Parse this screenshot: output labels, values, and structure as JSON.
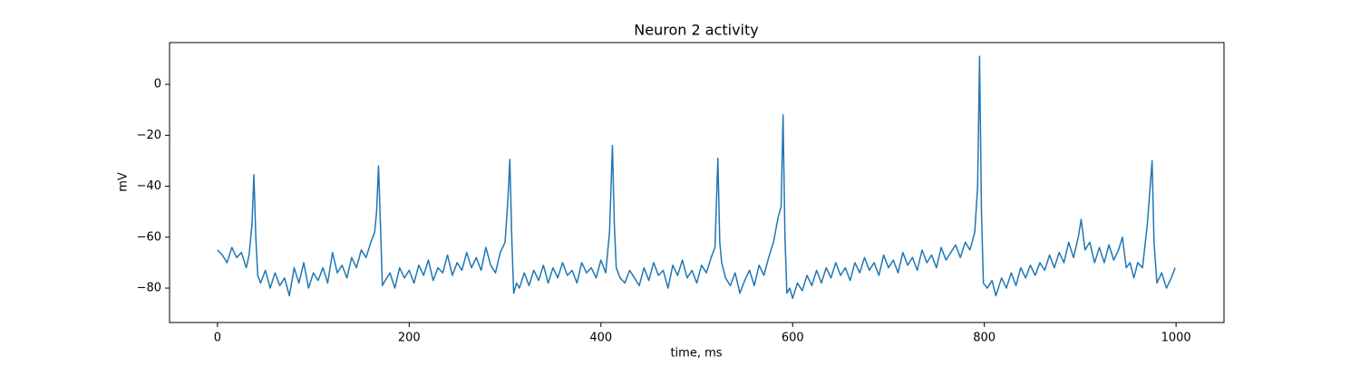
{
  "chart_data": {
    "type": "line",
    "title": "Neuron 2 activity",
    "xlabel": "time, ms",
    "ylabel": "mV",
    "color": "#1f77b4",
    "xlim": [
      -50,
      1050
    ],
    "ylim": [
      -93.5,
      16.4
    ],
    "xticks": [
      0,
      200,
      400,
      600,
      800,
      1000
    ],
    "yticks": [
      {
        "value": -80,
        "label": "−80"
      },
      {
        "value": -60,
        "label": "−60"
      },
      {
        "value": -40,
        "label": "−40"
      },
      {
        "value": -20,
        "label": "−20"
      },
      0
    ],
    "x": [
      0,
      5,
      10,
      15,
      20,
      25,
      30,
      33,
      36,
      38,
      40,
      42,
      45,
      50,
      55,
      60,
      65,
      70,
      75,
      80,
      85,
      90,
      95,
      100,
      105,
      110,
      115,
      120,
      125,
      130,
      135,
      140,
      145,
      150,
      155,
      160,
      164,
      166,
      168,
      170,
      172,
      175,
      180,
      185,
      190,
      195,
      200,
      205,
      210,
      215,
      220,
      225,
      230,
      235,
      240,
      245,
      250,
      255,
      260,
      265,
      270,
      275,
      280,
      285,
      290,
      295,
      300,
      303,
      305,
      307,
      309,
      312,
      315,
      320,
      325,
      330,
      335,
      340,
      345,
      350,
      355,
      360,
      365,
      370,
      375,
      380,
      385,
      390,
      395,
      400,
      405,
      409,
      412,
      414,
      416,
      420,
      425,
      430,
      435,
      440,
      445,
      450,
      455,
      460,
      465,
      470,
      475,
      480,
      485,
      490,
      495,
      500,
      505,
      510,
      515,
      519,
      522,
      524,
      526,
      530,
      535,
      540,
      545,
      550,
      555,
      560,
      565,
      570,
      575,
      580,
      585,
      588,
      590,
      592,
      594,
      597,
      600,
      605,
      610,
      615,
      620,
      625,
      630,
      635,
      640,
      645,
      650,
      655,
      660,
      665,
      670,
      675,
      680,
      685,
      690,
      695,
      700,
      705,
      710,
      715,
      720,
      725,
      730,
      735,
      740,
      745,
      750,
      755,
      760,
      765,
      770,
      775,
      780,
      785,
      790,
      793,
      795,
      797,
      799,
      803,
      808,
      812,
      818,
      823,
      828,
      833,
      838,
      843,
      848,
      853,
      858,
      863,
      868,
      873,
      878,
      883,
      888,
      893,
      898,
      901,
      905,
      910,
      915,
      920,
      925,
      930,
      935,
      940,
      944,
      948,
      952,
      956,
      960,
      965,
      970,
      975,
      977,
      980,
      985,
      990,
      995,
      999
    ],
    "values": [
      -65,
      -67,
      -70,
      -64,
      -68,
      -66,
      -72,
      -67,
      -55,
      -35.5,
      -60,
      -75,
      -78,
      -73,
      -80,
      -74,
      -79,
      -76,
      -83,
      -72,
      -78,
      -70,
      -80,
      -74,
      -77,
      -72,
      -78,
      -66,
      -74,
      -71,
      -76,
      -68,
      -72,
      -65,
      -68,
      -62,
      -58,
      -50,
      -32,
      -55,
      -79,
      -77,
      -74,
      -80,
      -72,
      -76,
      -73,
      -78,
      -71,
      -75,
      -69,
      -77,
      -72,
      -74,
      -67,
      -75,
      -70,
      -73,
      -66,
      -72,
      -68,
      -73,
      -64,
      -71,
      -74,
      -66,
      -62,
      -45,
      -29.5,
      -60,
      -82,
      -78,
      -80,
      -74,
      -79,
      -73,
      -77,
      -71,
      -78,
      -72,
      -76,
      -70,
      -75,
      -73,
      -78,
      -70,
      -74,
      -72,
      -76,
      -69,
      -74,
      -58,
      -24,
      -55,
      -72,
      -76,
      -78,
      -73,
      -76,
      -79,
      -72,
      -77,
      -70,
      -75,
      -73,
      -80,
      -71,
      -75,
      -69,
      -76,
      -73,
      -78,
      -71,
      -74,
      -68,
      -64,
      -29,
      -62,
      -70,
      -76,
      -79,
      -74,
      -82,
      -77,
      -73,
      -79,
      -71,
      -75,
      -68,
      -62,
      -52,
      -48,
      -12,
      -60,
      -82,
      -80,
      -84,
      -78,
      -81,
      -75,
      -79,
      -73,
      -78,
      -72,
      -76,
      -70,
      -75,
      -72,
      -77,
      -70,
      -74,
      -68,
      -73,
      -70,
      -75,
      -67,
      -72,
      -69,
      -74,
      -66,
      -71,
      -68,
      -73,
      -65,
      -70,
      -67,
      -72,
      -64,
      -69,
      -66,
      -63,
      -68,
      -62,
      -65,
      -58,
      -40,
      11,
      -50,
      -78,
      -80,
      -77,
      -83,
      -76,
      -80,
      -74,
      -79,
      -72,
      -76,
      -71,
      -75,
      -70,
      -73,
      -67,
      -72,
      -66,
      -70,
      -62,
      -68,
      -60,
      -53,
      -65,
      -62,
      -70,
      -64,
      -70,
      -63,
      -69,
      -65,
      -60,
      -72,
      -70,
      -76,
      -70,
      -72,
      -55,
      -30,
      -62,
      -78,
      -74,
      -80,
      -76,
      -72
    ]
  }
}
